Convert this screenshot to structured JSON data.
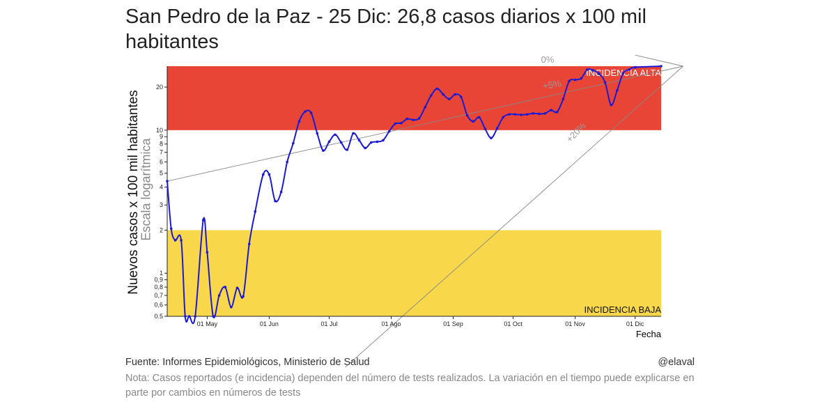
{
  "title": "San Pedro de la Paz - 25 Dic: 26,8 casos diarios x 100 mil habitantes",
  "footer": {
    "source": "Fuente: Informes Epidemiológicos, Ministerio de Salud",
    "handle": "@elaval",
    "note": "Nota: Casos reportados (e incidencia) dependen del número de tests realizados. La variación en el tiempo puede explicarse en parte por cambios en números de tests"
  },
  "colors": {
    "high_zone": "#e84536",
    "low_zone": "#f8d84a",
    "line": "#1a1ad6",
    "reference": "#888888"
  },
  "chart_data": {
    "type": "line",
    "title": "San Pedro de la Paz - 25 Dic: 26,8 casos diarios x 100 mil habitantes",
    "xlabel": "Fecha",
    "ylabel": "Nuevos casos x 100 mil habitantes",
    "ylabel_sub": "Escala logarítmica",
    "y_scale": "log",
    "ylim": [
      0.5,
      28
    ],
    "xlim_days": [
      0,
      247
    ],
    "x_ticks": [
      {
        "label": "01 May",
        "day": 20
      },
      {
        "label": "01 Jun",
        "day": 51
      },
      {
        "label": "01 Jul",
        "day": 81
      },
      {
        "label": "01 Ago",
        "day": 112
      },
      {
        "label": "01 Sep",
        "day": 143
      },
      {
        "label": "01 Oct",
        "day": 173
      },
      {
        "label": "01 Nov",
        "day": 204
      },
      {
        "label": "01 Dic",
        "day": 234
      }
    ],
    "y_ticks": [
      {
        "label": "0.5",
        "value": 0.5
      },
      {
        "label": "0,6",
        "value": 0.6
      },
      {
        "label": "0,7",
        "value": 0.7
      },
      {
        "label": "0,8",
        "value": 0.8
      },
      {
        "label": "0,9",
        "value": 0.9
      },
      {
        "label": "1",
        "value": 1
      },
      {
        "label": "2",
        "value": 2
      },
      {
        "label": "3",
        "value": 3
      },
      {
        "label": "4",
        "value": 4
      },
      {
        "label": "5",
        "value": 5
      },
      {
        "label": "6",
        "value": 6
      },
      {
        "label": "7",
        "value": 7
      },
      {
        "label": "8",
        "value": 8
      },
      {
        "label": "9",
        "value": 9
      },
      {
        "label": "10",
        "value": 10
      },
      {
        "label": "20",
        "value": 20
      }
    ],
    "zones": [
      {
        "name": "INCIDENCIA ALTA",
        "from": 10,
        "to": 28
      },
      {
        "name": "INCIDENCIA BAJA",
        "from": 0.5,
        "to": 2
      }
    ],
    "reference_lines": [
      {
        "label": "0%",
        "x1": 234,
        "y1": 33.5,
        "x2": 258,
        "y2": 28
      },
      {
        "label": "+5%",
        "x1": 0,
        "y1": 4.4,
        "x2": 258,
        "y2": 28
      },
      {
        "label": "+20%",
        "x1": 89,
        "y1": 0.22,
        "x2": 258,
        "y2": 28
      }
    ],
    "series": [
      {
        "name": "Casos diarios x 100 mil habitantes",
        "points": [
          [
            0,
            4.4
          ],
          [
            2,
            2.05
          ],
          [
            4,
            1.7
          ],
          [
            7,
            1.7
          ],
          [
            9,
            0.5
          ],
          [
            11,
            0.5
          ],
          [
            14,
            0.5
          ],
          [
            18,
            2.35
          ],
          [
            20,
            1.4
          ],
          [
            23,
            0.5
          ],
          [
            26,
            0.7
          ],
          [
            29,
            0.8
          ],
          [
            32,
            0.58
          ],
          [
            35,
            0.79
          ],
          [
            38,
            0.69
          ],
          [
            41,
            1.6
          ],
          [
            44,
            2.7
          ],
          [
            48,
            4.9
          ],
          [
            51,
            4.9
          ],
          [
            54,
            3.2
          ],
          [
            57,
            3.7
          ],
          [
            60,
            6.0
          ],
          [
            63,
            8.1
          ],
          [
            66,
            11.5
          ],
          [
            69,
            13.5
          ],
          [
            72,
            13.2
          ],
          [
            75,
            9.5
          ],
          [
            78,
            7.2
          ],
          [
            81,
            8.3
          ],
          [
            84,
            9.3
          ],
          [
            87,
            8.2
          ],
          [
            90,
            7.3
          ],
          [
            93,
            9.5
          ],
          [
            96,
            8.5
          ],
          [
            99,
            7.5
          ],
          [
            102,
            8.2
          ],
          [
            105,
            8.3
          ],
          [
            108,
            8.5
          ],
          [
            111,
            9.8
          ],
          [
            114,
            11.1
          ],
          [
            117,
            11.2
          ],
          [
            120,
            12.0
          ],
          [
            123,
            11.8
          ],
          [
            126,
            12.1
          ],
          [
            129,
            14.5
          ],
          [
            132,
            17.5
          ],
          [
            135,
            19.5
          ],
          [
            138,
            17.8
          ],
          [
            141,
            16.5
          ],
          [
            144,
            17.8
          ],
          [
            147,
            17.0
          ],
          [
            150,
            12.7
          ],
          [
            153,
            11.5
          ],
          [
            156,
            12.3
          ],
          [
            159,
            10.2
          ],
          [
            162,
            8.8
          ],
          [
            165,
            10.3
          ],
          [
            168,
            12.3
          ],
          [
            171,
            12.9
          ],
          [
            174,
            12.9
          ],
          [
            177,
            12.8
          ],
          [
            180,
            12.9
          ],
          [
            183,
            13.1
          ],
          [
            186,
            13.0
          ],
          [
            189,
            13.1
          ],
          [
            192,
            13.8
          ],
          [
            195,
            13.4
          ],
          [
            198,
            16.5
          ],
          [
            201,
            22.0
          ],
          [
            204,
            22.5
          ],
          [
            207,
            23.0
          ],
          [
            210,
            26.5
          ],
          [
            213,
            26.2
          ],
          [
            216,
            24.8
          ],
          [
            219,
            21.5
          ],
          [
            222,
            15.0
          ],
          [
            225,
            19.0
          ],
          [
            228,
            25.0
          ],
          [
            231,
            26.5
          ],
          [
            234,
            27.5
          ],
          [
            247,
            28.0
          ]
        ]
      }
    ]
  }
}
